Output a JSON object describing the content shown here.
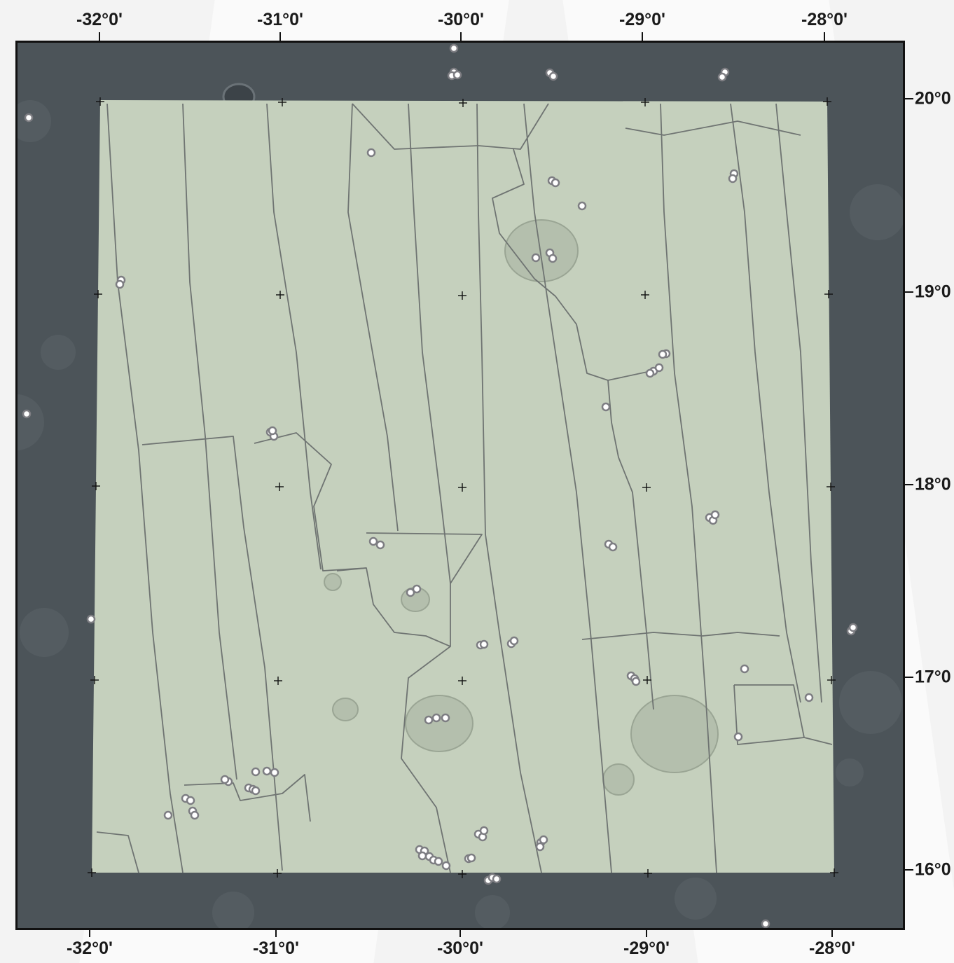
{
  "map": {
    "colors": {
      "outer_terrain": "#4c5459",
      "inner_terrain": "#c5d0bd",
      "boundary_lines": "#6f7472",
      "grid_cross": "#111111",
      "point_fill": "#ffffff",
      "point_stroke": "#7d7d82",
      "frame": "#111111"
    },
    "top_labels": [
      "-32°0'",
      "-31°0'",
      "-30°0'",
      "-29°0'",
      "-28°0'"
    ],
    "bottom_labels": [
      "-32°0'",
      "-31°0'",
      "-30°0'",
      "-29°0'",
      "-28°0'"
    ],
    "right_labels": [
      "20°0",
      "19°0",
      "18°0",
      "17°0",
      "16°0"
    ]
  }
}
